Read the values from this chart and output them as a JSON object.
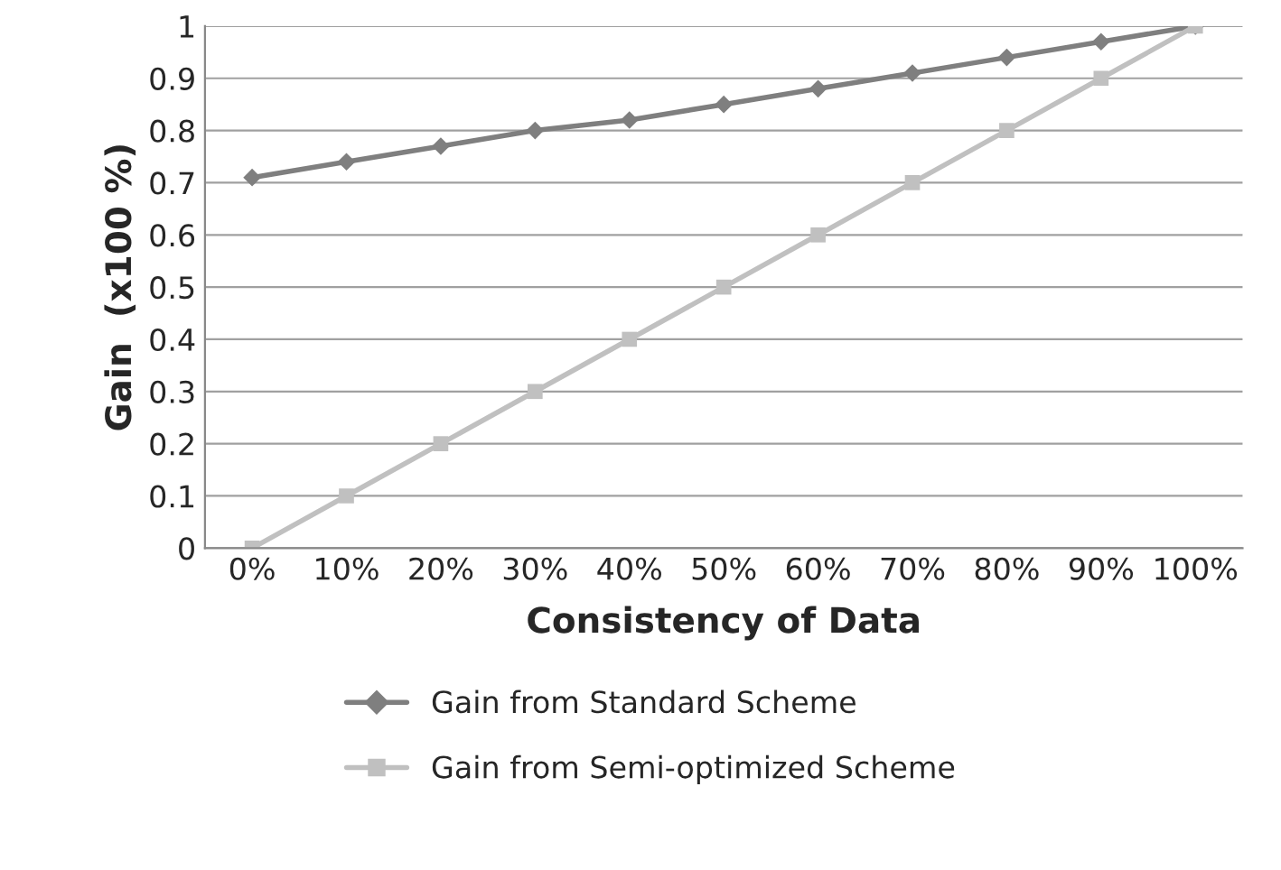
{
  "chart_data": {
    "type": "line",
    "xlabel": "Consistency of Data",
    "ylabel": "Gain  (x100 %)",
    "categories": [
      "0%",
      "10%",
      "20%",
      "30%",
      "40%",
      "50%",
      "60%",
      "70%",
      "80%",
      "90%",
      "100%"
    ],
    "series": [
      {
        "name": "Gain from Standard Scheme",
        "color": "#7f7f7f",
        "marker": "diamond",
        "values": [
          0.71,
          0.74,
          0.77,
          0.8,
          0.82,
          0.85,
          0.88,
          0.91,
          0.94,
          0.97,
          1
        ]
      },
      {
        "name": "Gain from Semi-optimized Scheme",
        "color": "#c0c0c0",
        "marker": "square",
        "values": [
          0,
          0.1,
          0.2,
          0.3,
          0.4,
          0.5,
          0.6,
          0.7,
          0.8,
          0.9,
          1
        ]
      }
    ],
    "ylim": [
      0,
      1
    ],
    "yticks": [
      0,
      0.1,
      0.2,
      0.3,
      0.4,
      0.5,
      0.6,
      0.7,
      0.8,
      0.9,
      1
    ],
    "grid": "y",
    "legend": "bottom",
    "line_style": "solid"
  }
}
